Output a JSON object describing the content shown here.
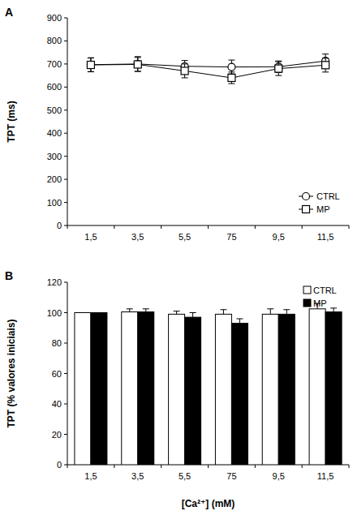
{
  "chart_data": [
    {
      "type": "line",
      "title": "A",
      "y_label": "TPT (ms)",
      "categories": [
        "1,5",
        "3,5",
        "5,5",
        "75",
        "9,5",
        "11,5"
      ],
      "series": [
        {
          "name": "CTRL",
          "color": "#000000",
          "marker": "circle",
          "values": [
            697,
            700,
            690,
            687,
            688,
            713
          ],
          "errors": [
            30,
            32,
            25,
            30,
            25,
            30
          ]
        },
        {
          "name": "MP",
          "color": "#000000",
          "marker": "square",
          "values": [
            696,
            698,
            670,
            640,
            680,
            695
          ],
          "errors": [
            30,
            30,
            30,
            25,
            30,
            30
          ]
        }
      ],
      "ylim": [
        0,
        900
      ],
      "yticks": [
        0,
        100,
        200,
        300,
        400,
        500,
        600,
        700,
        800,
        900
      ],
      "grid": false,
      "legend": "lower right"
    },
    {
      "type": "bar",
      "title": "B",
      "x_label": "[Ca²⁺] (mM)",
      "y_label": "TPT (% valores iniciais)",
      "categories": [
        "1,5",
        "3,5",
        "5,5",
        "75",
        "9,5",
        "11,5"
      ],
      "series": [
        {
          "name": "CTRL",
          "color": "#ffffff",
          "values": [
            100,
            100.5,
            99,
            99,
            99,
            102.5
          ],
          "errors": [
            0,
            2,
            2,
            3,
            3.5,
            3.5
          ]
        },
        {
          "name": "MP",
          "color": "#000000",
          "values": [
            100,
            100.5,
            97,
            93,
            99,
            100.5
          ],
          "errors": [
            0,
            2,
            3,
            3,
            3,
            2.5
          ]
        }
      ],
      "ylim": [
        0,
        120
      ],
      "yticks": [
        0,
        20,
        40,
        60,
        80,
        100,
        120
      ],
      "grid": false,
      "legend": "upper right"
    }
  ]
}
